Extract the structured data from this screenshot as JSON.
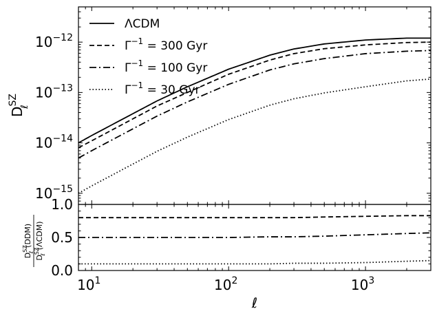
{
  "chart_data": [
    {
      "panel": "top",
      "type": "line",
      "ylabel": {
        "base": "D",
        "sup": "SZ",
        "sub": "ℓ"
      },
      "xscale": "log",
      "yscale": "log",
      "xlim": [
        8,
        3000
      ],
      "ylim": [
        6e-16,
        5e-12
      ],
      "ytick_values": [
        1e-15,
        1e-14,
        1e-13,
        1e-12
      ],
      "yticks": [
        {
          "base": "10",
          "exp": "−15"
        },
        {
          "base": "10",
          "exp": "−14"
        },
        {
          "base": "10",
          "exp": "−13"
        },
        {
          "base": "10",
          "exp": "−12"
        }
      ],
      "legend_placement": "upper-left",
      "x": [
        8,
        10,
        20,
        30,
        50,
        100,
        200,
        300,
        500,
        1000,
        2000,
        3000
      ],
      "series": [
        {
          "name": "ΛCDM",
          "style": "solid",
          "values": [
            1e-14,
            1.4e-14,
            3.8e-14,
            6.8e-14,
            1.3e-13,
            2.9e-13,
            5.5e-13,
            7.3e-13,
            9.2e-13,
            1.1e-12,
            1.2e-12,
            1.2e-12
          ]
        },
        {
          "name": "Γ⁻¹ = 300 Gyr",
          "legend": {
            "base": "Γ",
            "exp": "−1",
            "rest": " = 300 Gyr"
          },
          "style": "dashed",
          "values": [
            8e-15,
            1.1e-14,
            3e-14,
            5.4e-14,
            1e-13,
            2.3e-13,
            4.4e-13,
            5.9e-13,
            7.4e-13,
            8.8e-13,
            9.8e-13,
            1e-12
          ]
        },
        {
          "name": "Γ⁻¹ = 100 Gyr",
          "legend": {
            "base": "Γ",
            "exp": "−1",
            "rest": " = 100 Gyr"
          },
          "style": "dashdot",
          "values": [
            5e-15,
            7e-15,
            1.9e-14,
            3.4e-14,
            6.5e-14,
            1.45e-13,
            2.8e-13,
            3.7e-13,
            4.7e-13,
            5.9e-13,
            6.6e-13,
            6.8e-13
          ]
        },
        {
          "name": "Γ⁻¹ = 30 Gyr",
          "legend": {
            "base": "Γ",
            "exp": "−1",
            "rest": " = 30 Gyr"
          },
          "style": "dotted",
          "values": [
            1e-15,
            1.4e-15,
            3.8e-15,
            6.8e-15,
            1.3e-14,
            2.9e-14,
            5.6e-14,
            7.5e-14,
            9.8e-14,
            1.3e-13,
            1.7e-13,
            1.85e-13
          ]
        }
      ]
    },
    {
      "panel": "bottom",
      "type": "line",
      "xlabel": "ℓ",
      "ylabel": {
        "num": "D",
        "num_sup": "SZ",
        "num_sub": "ℓ",
        "num_arg": "(DDM)",
        "den": "D",
        "den_sup": "SZ",
        "den_sub": "ℓ",
        "den_arg": "(ΛCDM)"
      },
      "xscale": "log",
      "xlim": [
        8,
        3000
      ],
      "ylim": [
        0.0,
        1.0
      ],
      "ytick_values": [
        0.0,
        0.5,
        1.0
      ],
      "yticks": [
        "0.0",
        "0.5",
        "1.0"
      ],
      "xtick_values": [
        10,
        100,
        1000
      ],
      "xticks": [
        {
          "base": "10",
          "exp": "1"
        },
        {
          "base": "10",
          "exp": "2"
        },
        {
          "base": "10",
          "exp": "3"
        }
      ],
      "x": [
        8,
        10,
        20,
        50,
        100,
        200,
        300,
        500,
        1000,
        2000,
        3000
      ],
      "series": [
        {
          "style": "dashed",
          "values": [
            0.8,
            0.8,
            0.8,
            0.8,
            0.8,
            0.8,
            0.8,
            0.81,
            0.82,
            0.83,
            0.83
          ]
        },
        {
          "style": "dashdot",
          "values": [
            0.5,
            0.5,
            0.5,
            0.5,
            0.5,
            0.51,
            0.51,
            0.52,
            0.54,
            0.56,
            0.57
          ]
        },
        {
          "style": "dotted",
          "values": [
            0.1,
            0.1,
            0.1,
            0.1,
            0.1,
            0.1,
            0.11,
            0.11,
            0.12,
            0.14,
            0.15
          ]
        }
      ]
    }
  ]
}
